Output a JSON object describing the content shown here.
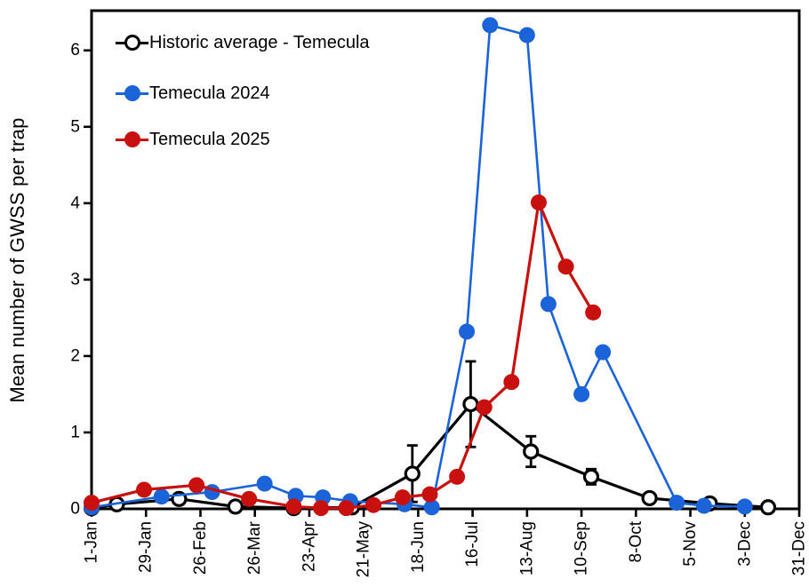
{
  "chart_data": {
    "type": "line",
    "title": "",
    "xlabel": "",
    "ylabel": "Mean number of GWSS per trap",
    "ylim": [
      0,
      6.52
    ],
    "yticks": [
      0,
      1,
      2,
      3,
      4,
      5,
      6
    ],
    "xtick_days": [
      1,
      29,
      57,
      85,
      113,
      141,
      169,
      197,
      225,
      253,
      281,
      309,
      337,
      365
    ],
    "xtick_labels": [
      "1-Jan",
      "29-Jan",
      "26-Feb",
      "26-Mar",
      "23-Apr",
      "21-May",
      "18-Jun",
      "16-Jul",
      "13-Aug",
      "10-Sep",
      "8-Oct",
      "5-Nov",
      "3-Dec",
      "31-Dec"
    ],
    "grid": false,
    "legend_position": "upper-left-inside",
    "axis_color": "#000000",
    "series": [
      {
        "name": "Historic average - Temecula",
        "color": "#000000",
        "marker": "open-circle",
        "line_width": 3.2,
        "points": [
          {
            "date": "1-Jan",
            "day": 1,
            "value": 0.01
          },
          {
            "date": "14-Jan",
            "day": 14,
            "value": 0.06
          },
          {
            "date": "15-Feb",
            "day": 46,
            "value": 0.13
          },
          {
            "date": "16-Mar",
            "day": 75,
            "value": 0.03
          },
          {
            "date": "15-Apr",
            "day": 105,
            "value": 0.01
          },
          {
            "date": "15-May",
            "day": 135,
            "value": 0.02
          },
          {
            "date": "15-Jun",
            "day": 166,
            "value": 0.46,
            "err": 0.37
          },
          {
            "date": "15-Jul",
            "day": 196,
            "value": 1.37,
            "err": 0.56
          },
          {
            "date": "15-Aug",
            "day": 227,
            "value": 0.75,
            "err": 0.2
          },
          {
            "date": "15-Sep",
            "day": 258,
            "value": 0.42,
            "err": 0.1
          },
          {
            "date": "15-Oct",
            "day": 288,
            "value": 0.14
          },
          {
            "date": "15-Nov",
            "day": 319,
            "value": 0.07
          },
          {
            "date": "15-Dec",
            "day": 349,
            "value": 0.02
          }
        ]
      },
      {
        "name": "Temecula 2024",
        "color": "#1A63D8",
        "marker": "filled-circle",
        "line_width": 2.6,
        "points": [
          {
            "date": "1-Jan",
            "day": 1,
            "value": 0.02
          },
          {
            "date": "6-Feb",
            "day": 37,
            "value": 0.16
          },
          {
            "date": "4-Mar",
            "day": 63,
            "value": 0.22
          },
          {
            "date": "31-Mar",
            "day": 90,
            "value": 0.33
          },
          {
            "date": "16-Apr",
            "day": 106,
            "value": 0.17
          },
          {
            "date": "30-Apr",
            "day": 120,
            "value": 0.15
          },
          {
            "date": "14-May",
            "day": 134,
            "value": 0.1
          },
          {
            "date": "11-Jun",
            "day": 162,
            "value": 0.06
          },
          {
            "date": "25-Jun",
            "day": 176,
            "value": 0.02
          },
          {
            "date": "13-Jul",
            "day": 194,
            "value": 2.32
          },
          {
            "date": "25-Jul",
            "day": 206,
            "value": 6.33
          },
          {
            "date": "13-Aug",
            "day": 225,
            "value": 6.2
          },
          {
            "date": "24-Aug",
            "day": 236,
            "value": 2.68
          },
          {
            "date": "10-Sep",
            "day": 253,
            "value": 1.5
          },
          {
            "date": "21-Sep",
            "day": 264,
            "value": 2.05
          },
          {
            "date": "29-Oct",
            "day": 302,
            "value": 0.08
          },
          {
            "date": "12-Nov",
            "day": 316,
            "value": 0.04
          },
          {
            "date": "3-Dec",
            "day": 337,
            "value": 0.03
          }
        ]
      },
      {
        "name": "Temecula 2025",
        "color": "#C8100E",
        "marker": "filled-circle",
        "line_width": 3.2,
        "points": [
          {
            "date": "1-Jan",
            "day": 1,
            "value": 0.08
          },
          {
            "date": "28-Jan",
            "day": 28,
            "value": 0.25
          },
          {
            "date": "24-Feb",
            "day": 55,
            "value": 0.31
          },
          {
            "date": "23-Mar",
            "day": 82,
            "value": 0.13
          },
          {
            "date": "15-Apr",
            "day": 105,
            "value": 0.03
          },
          {
            "date": "29-Apr",
            "day": 119,
            "value": 0.01
          },
          {
            "date": "12-May",
            "day": 132,
            "value": 0.01
          },
          {
            "date": "26-May",
            "day": 146,
            "value": 0.05
          },
          {
            "date": "10-Jun",
            "day": 161,
            "value": 0.15
          },
          {
            "date": "24-Jun",
            "day": 175,
            "value": 0.19
          },
          {
            "date": "8-Jul",
            "day": 189,
            "value": 0.42
          },
          {
            "date": "22-Jul",
            "day": 203,
            "value": 1.33
          },
          {
            "date": "5-Aug",
            "day": 217,
            "value": 1.66
          },
          {
            "date": "19-Aug",
            "day": 231,
            "value": 4.01
          },
          {
            "date": "2-Sep",
            "day": 245,
            "value": 3.17
          },
          {
            "date": "16-Sep",
            "day": 259,
            "value": 2.57
          }
        ]
      }
    ]
  }
}
